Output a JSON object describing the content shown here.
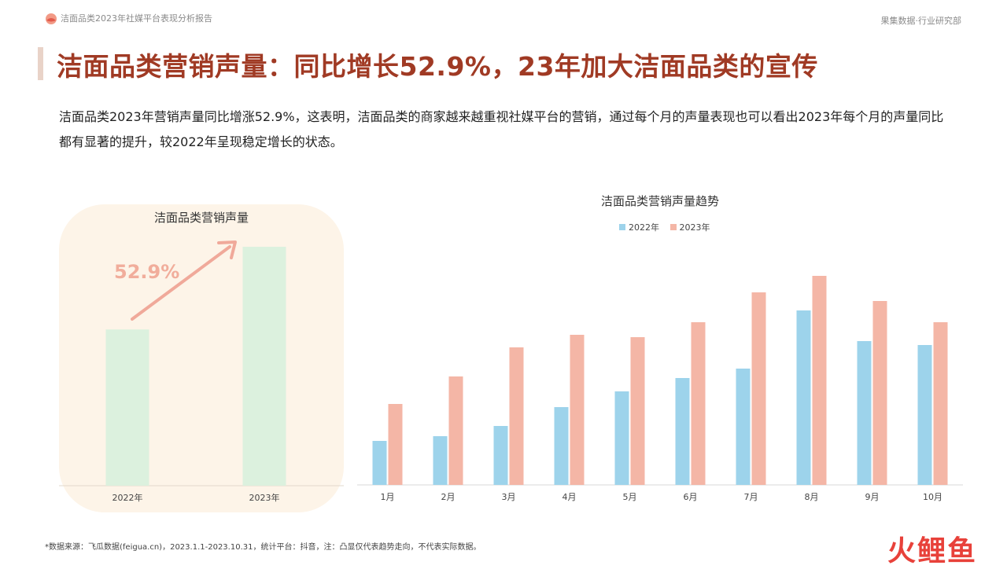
{
  "header": {
    "report_title": "洁面品类2023年社媒平台表现分析报告",
    "org": "果集数据·行业研究部"
  },
  "page_title": "洁面品类营销声量：同比增长52.9%，23年加大洁面品类的宣传",
  "summary": "洁面品类2023年营销声量同比增涨52.9%，这表明，洁面品类的商家越来越重视社媒平台的营销，通过每个月的声量表现也可以看出2023年每个月的声量同比都有显著的提升，较2022年呈现稳定增长的状态。",
  "colors": {
    "brand_red": "#a03a24",
    "series_2022": "#9dd3eb",
    "series_2023": "#f4b6a6",
    "left_bar": "#dcf1de",
    "arrow": "#f0a99a"
  },
  "chart_data": [
    {
      "type": "bar",
      "title": "洁面品类营销声量",
      "categories": [
        "2022年",
        "2023年"
      ],
      "values": [
        100,
        152.9
      ],
      "ylim": [
        0,
        152.9
      ],
      "annotation": "52.9%"
    },
    {
      "type": "bar",
      "title": "洁面品类营销声量趋势",
      "categories": [
        "1月",
        "2月",
        "3月",
        "4月",
        "5月",
        "6月",
        "7月",
        "8月",
        "9月",
        "10月"
      ],
      "series": [
        {
          "name": "2022年",
          "values": [
            56,
            62,
            75,
            99,
            119,
            136,
            148,
            222,
            183,
            178
          ]
        },
        {
          "name": "2023年",
          "values": [
            103,
            138,
            175,
            191,
            188,
            207,
            245,
            266,
            234,
            207
          ]
        }
      ],
      "ylim": [
        0,
        300
      ],
      "legend": "top"
    }
  ],
  "footnote": "*数据来源：飞瓜数据(feigua.cn)，2023.1.1-2023.10.31，统计平台：抖音，注：凸显仅代表趋势走向，不代表实际数据。",
  "watermark": "火鲤鱼"
}
